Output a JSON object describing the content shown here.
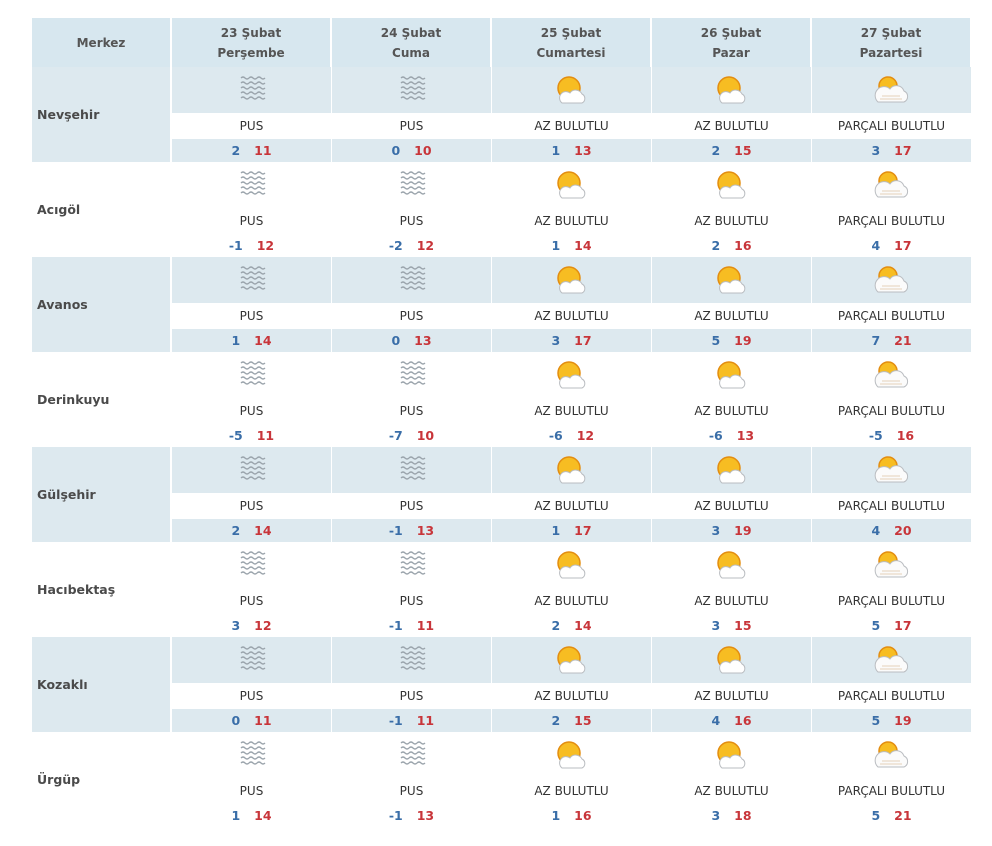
{
  "header": {
    "corner": "Merkez",
    "days": [
      {
        "date": "23 Şubat",
        "day": "Perşembe"
      },
      {
        "date": "24 Şubat",
        "day": "Cuma"
      },
      {
        "date": "25 Şubat",
        "day": "Cumartesi"
      },
      {
        "date": "26 Şubat",
        "day": "Pazar"
      },
      {
        "date": "27 Şubat",
        "day": "Pazartesi"
      }
    ]
  },
  "rows": [
    {
      "name": "Nevşehir",
      "days": [
        {
          "condition": "PUS",
          "min": 2,
          "max": 11
        },
        {
          "condition": "PUS",
          "min": 0,
          "max": 10
        },
        {
          "condition": "AZ BULUTLU",
          "min": 1,
          "max": 13
        },
        {
          "condition": "AZ BULUTLU",
          "min": 2,
          "max": 15
        },
        {
          "condition": "PARÇALI BULUTLU",
          "min": 3,
          "max": 17
        }
      ]
    },
    {
      "name": "Acıgöl",
      "days": [
        {
          "condition": "PUS",
          "min": -1,
          "max": 12
        },
        {
          "condition": "PUS",
          "min": -2,
          "max": 12
        },
        {
          "condition": "AZ BULUTLU",
          "min": 1,
          "max": 14
        },
        {
          "condition": "AZ BULUTLU",
          "min": 2,
          "max": 16
        },
        {
          "condition": "PARÇALI BULUTLU",
          "min": 4,
          "max": 17
        }
      ]
    },
    {
      "name": "Avanos",
      "days": [
        {
          "condition": "PUS",
          "min": 1,
          "max": 14
        },
        {
          "condition": "PUS",
          "min": 0,
          "max": 13
        },
        {
          "condition": "AZ BULUTLU",
          "min": 3,
          "max": 17
        },
        {
          "condition": "AZ BULUTLU",
          "min": 5,
          "max": 19
        },
        {
          "condition": "PARÇALI BULUTLU",
          "min": 7,
          "max": 21
        }
      ]
    },
    {
      "name": "Derinkuyu",
      "days": [
        {
          "condition": "PUS",
          "min": -5,
          "max": 11
        },
        {
          "condition": "PUS",
          "min": -7,
          "max": 10
        },
        {
          "condition": "AZ BULUTLU",
          "min": -6,
          "max": 12
        },
        {
          "condition": "AZ BULUTLU",
          "min": -6,
          "max": 13
        },
        {
          "condition": "PARÇALI BULUTLU",
          "min": -5,
          "max": 16
        }
      ]
    },
    {
      "name": "Gülşehir",
      "days": [
        {
          "condition": "PUS",
          "min": 2,
          "max": 14
        },
        {
          "condition": "PUS",
          "min": -1,
          "max": 13
        },
        {
          "condition": "AZ BULUTLU",
          "min": 1,
          "max": 17
        },
        {
          "condition": "AZ BULUTLU",
          "min": 3,
          "max": 19
        },
        {
          "condition": "PARÇALI BULUTLU",
          "min": 4,
          "max": 20
        }
      ]
    },
    {
      "name": "Hacıbektaş",
      "days": [
        {
          "condition": "PUS",
          "min": 3,
          "max": 12
        },
        {
          "condition": "PUS",
          "min": -1,
          "max": 11
        },
        {
          "condition": "AZ BULUTLU",
          "min": 2,
          "max": 14
        },
        {
          "condition": "AZ BULUTLU",
          "min": 3,
          "max": 15
        },
        {
          "condition": "PARÇALI BULUTLU",
          "min": 5,
          "max": 17
        }
      ]
    },
    {
      "name": "Kozaklı",
      "days": [
        {
          "condition": "PUS",
          "min": 0,
          "max": 11
        },
        {
          "condition": "PUS",
          "min": -1,
          "max": 11
        },
        {
          "condition": "AZ BULUTLU",
          "min": 2,
          "max": 15
        },
        {
          "condition": "AZ BULUTLU",
          "min": 4,
          "max": 16
        },
        {
          "condition": "PARÇALI BULUTLU",
          "min": 5,
          "max": 19
        }
      ]
    },
    {
      "name": "Ürgüp",
      "days": [
        {
          "condition": "PUS",
          "min": 1,
          "max": 14
        },
        {
          "condition": "PUS",
          "min": -1,
          "max": 13
        },
        {
          "condition": "AZ BULUTLU",
          "min": 1,
          "max": 16
        },
        {
          "condition": "AZ BULUTLU",
          "min": 3,
          "max": 18
        },
        {
          "condition": "PARÇALI BULUTLU",
          "min": 5,
          "max": 21
        }
      ]
    }
  ]
}
